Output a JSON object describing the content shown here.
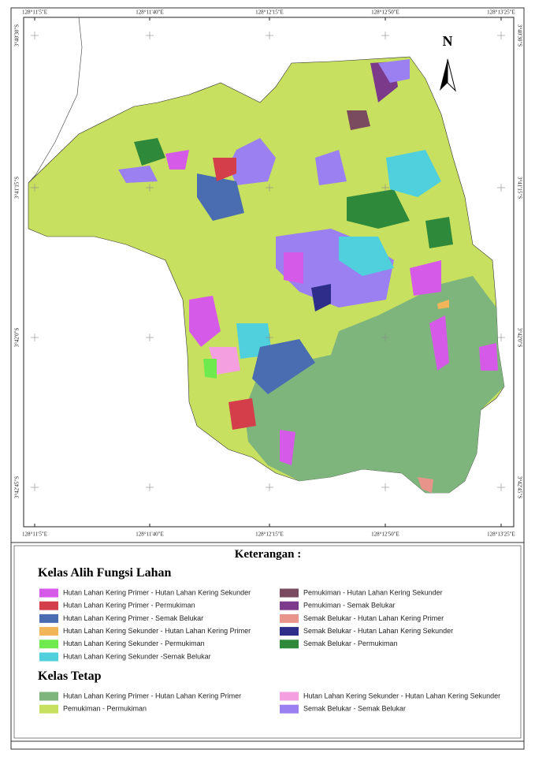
{
  "map": {
    "x_labels": [
      "128°11'5\"E",
      "128°11'40\"E",
      "128°12'15\"E",
      "128°12'50\"E",
      "128°13'25\"E"
    ],
    "y_labels": [
      "3°40'30\"S",
      "3°41'15\"S",
      "3°42'0\"S",
      "3°42'45\"S"
    ],
    "north": "N"
  },
  "legend": {
    "title": "Keterangan :",
    "groups": [
      {
        "title": "Kelas Alih Fungsi Lahan",
        "items": [
          {
            "label": "Hutan Lahan Kering Primer - Hutan Lahan Kering Sekunder",
            "color": "#d65ae8"
          },
          {
            "label": "Hutan Lahan Kering Primer - Permukiman",
            "color": "#d43d4a"
          },
          {
            "label": "Hutan Lahan Kering Primer - Semak Belukar",
            "color": "#4a6cb0"
          },
          {
            "label": "Hutan Lahan Kering Sekunder - Hutan Lahan Kering Primer",
            "color": "#f2b55a"
          },
          {
            "label": "Hutan Lahan Kering Sekunder - Permukiman",
            "color": "#6fea4e"
          },
          {
            "label": "Hutan Lahan Kering Sekunder -Semak Belukar",
            "color": "#4fd0dc"
          },
          {
            "label": "Pemukiman - Hutan Lahan Kering Sekunder",
            "color": "#7a4a5e"
          },
          {
            "label": "Pemukiman - Semak Belukar",
            "color": "#7b3a8a"
          },
          {
            "label": "Semak Belukar - Hutan Lahan Kering Primer",
            "color": "#e8948a"
          },
          {
            "label": "Semak Belukar - Hutan Lahan Kering Sekunder",
            "color": "#2e2e8a"
          },
          {
            "label": "Semak Belukar - Permukiman",
            "color": "#2e8a3a"
          }
        ]
      },
      {
        "title": "Kelas Tetap",
        "items": [
          {
            "label": "Hutan Lahan Kering Primer - Hutan Lahan Kering Primer",
            "color": "#7db57d"
          },
          {
            "label": "Pemukiman - Permukiman",
            "color": "#c8e060"
          },
          {
            "label": "Hutan Lahan Kering Sekunder - Hutan Lahan Kering Sekunder",
            "color": "#f4a0e0"
          },
          {
            "label": "Semak Belukar - Semak Belukar",
            "color": "#9a80f0"
          }
        ]
      }
    ]
  }
}
